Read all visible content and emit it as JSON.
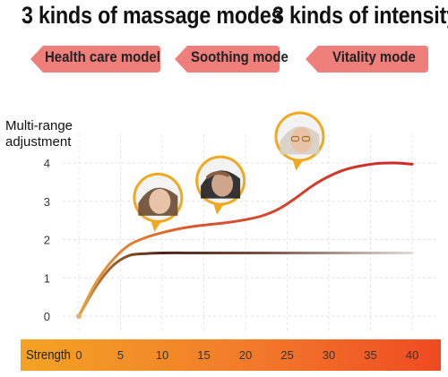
{
  "headlines": {
    "modes": "3 kinds of massage modes",
    "intensity": "3 kinds of intensity"
  },
  "modes": [
    {
      "label": "Health care model",
      "color": "#ef7f7b"
    },
    {
      "label": "Soothing mode",
      "color": "#ef7f7b"
    },
    {
      "label": "Vitality mode",
      "color": "#ef7f7b"
    }
  ],
  "chart_data": {
    "type": "line",
    "ylabel": "Multi-range adjustment",
    "xlabel": "Strength",
    "x_ticks": [
      0,
      5,
      10,
      15,
      20,
      25,
      30,
      35,
      40
    ],
    "y_ticks": [
      0,
      1,
      2,
      3,
      4
    ],
    "xlim": [
      0,
      40
    ],
    "ylim": [
      0,
      4
    ],
    "grid": true,
    "series": [
      {
        "color": "#c9282a",
        "x": [
          0,
          2,
          4,
          6,
          8,
          10,
          12,
          14,
          16,
          18,
          20,
          22,
          24,
          26,
          28,
          30,
          32,
          34,
          36,
          38,
          40
        ],
        "y": [
          0,
          0.85,
          1.45,
          1.85,
          2.05,
          2.18,
          2.28,
          2.35,
          2.4,
          2.45,
          2.52,
          2.62,
          2.8,
          3.08,
          3.4,
          3.65,
          3.83,
          3.93,
          3.99,
          4.0,
          3.97
        ]
      },
      {
        "color": "#5a2b1c",
        "x": [
          0,
          2,
          4,
          6,
          8,
          10,
          15,
          20,
          25,
          30,
          35,
          40
        ],
        "y": [
          0,
          0.75,
          1.3,
          1.58,
          1.63,
          1.65,
          1.65,
          1.65,
          1.65,
          1.65,
          1.65,
          1.65
        ]
      }
    ]
  },
  "photos": [
    {
      "icon": "sleeping-woman-icon",
      "x": 9.5,
      "y": 2.95
    },
    {
      "icon": "tired-man-icon",
      "x": 17,
      "y": 3.4
    },
    {
      "icon": "elderly-woman-icon",
      "x": 26.5,
      "y": 4.55
    }
  ]
}
